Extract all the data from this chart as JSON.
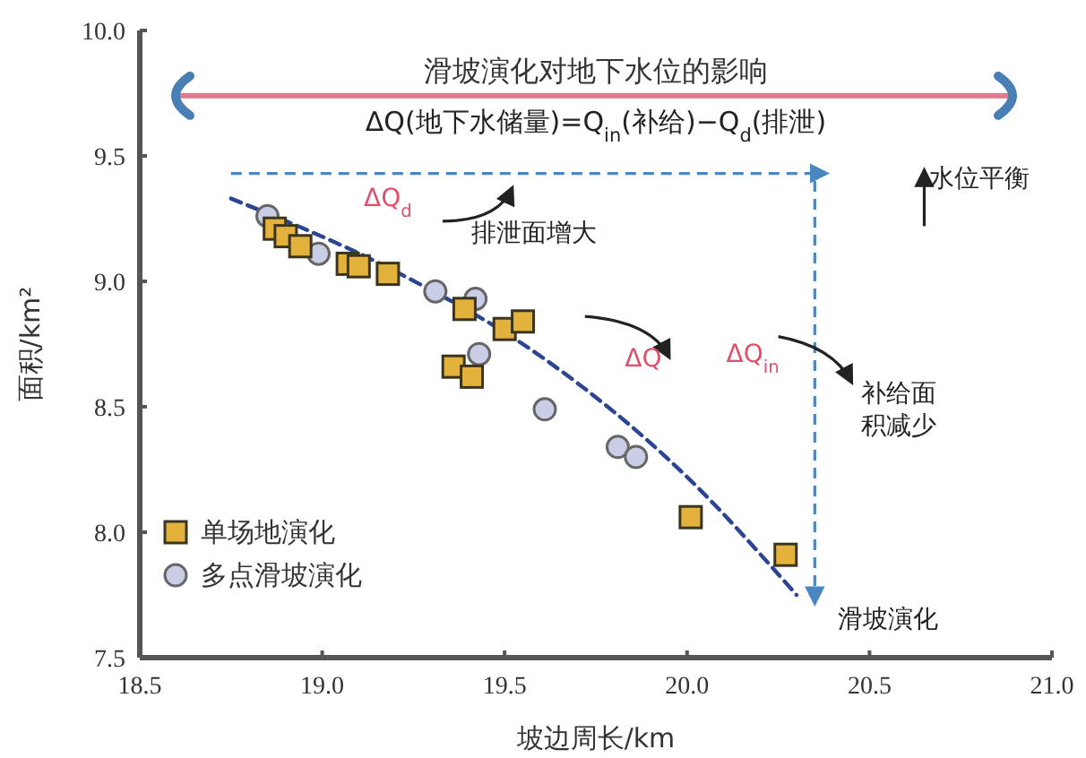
{
  "chart_data": {
    "type": "scatter",
    "title": "滑坡演化对地下水位的影响",
    "subtitle": "ΔQ(地下水储量)=Q$_{in}$(补给)−Q$_{d}$(排泄)",
    "xlabel": "坡边周长/km",
    "ylabel": "面积/km²",
    "xlim": [
      18.5,
      21.0
    ],
    "ylim": [
      7.5,
      10.0
    ],
    "xticks": [
      {
        "value": 18.5,
        "label": "18.5"
      },
      {
        "value": 19,
        "label": "19.0"
      },
      {
        "value": 19.5,
        "label": "19.5"
      },
      {
        "value": 20,
        "label": "20.0"
      },
      {
        "value": 20.5,
        "label": "20.5"
      },
      {
        "value": 21,
        "label": "21.0"
      }
    ],
    "yticks": [
      {
        "value": 7.5,
        "label": "7.5"
      },
      {
        "value": 8,
        "label": "8.0"
      },
      {
        "value": 8.5,
        "label": "8.5"
      },
      {
        "value": 9,
        "label": "9.0"
      },
      {
        "value": 9.5,
        "label": "9.5"
      },
      {
        "value": 10,
        "label": "10.0"
      }
    ],
    "grid": false,
    "legend": "bottom left",
    "series": [
      {
        "name": "单场地演化",
        "marker": "square",
        "color": "#e2b23c",
        "x": [
          18.87,
          18.9,
          18.94,
          19.07,
          19.1,
          19.18,
          19.39,
          19.5,
          19.55,
          19.36,
          19.41,
          20.01,
          20.27
        ],
        "values": [
          9.21,
          9.18,
          9.14,
          9.07,
          9.06,
          9.03,
          8.89,
          8.81,
          8.84,
          8.66,
          8.62,
          8.06,
          7.91
        ]
      },
      {
        "name": "多点滑坡演化",
        "marker": "circle",
        "color": "#c9cde6",
        "x": [
          18.85,
          18.99,
          19.31,
          19.42,
          19.43,
          19.61,
          19.81,
          19.86
        ],
        "values": [
          9.26,
          9.11,
          8.96,
          8.93,
          8.71,
          8.49,
          8.34,
          8.3
        ]
      },
      {
        "type": "line",
        "marker": "none",
        "line_style": "dashed",
        "color": "#2c4590",
        "x": [
          18.75,
          19.2,
          19.6,
          20.0,
          20.3
        ],
        "values": [
          9.33,
          9.04,
          8.7,
          8.22,
          7.75
        ]
      }
    ],
    "annotations": [
      "ΔQ$_{d}$",
      "排泄面增大",
      "水位平衡",
      "ΔQ$_{in}$",
      "补给面积减少",
      "ΔQ",
      "滑坡演化"
    ]
  }
}
